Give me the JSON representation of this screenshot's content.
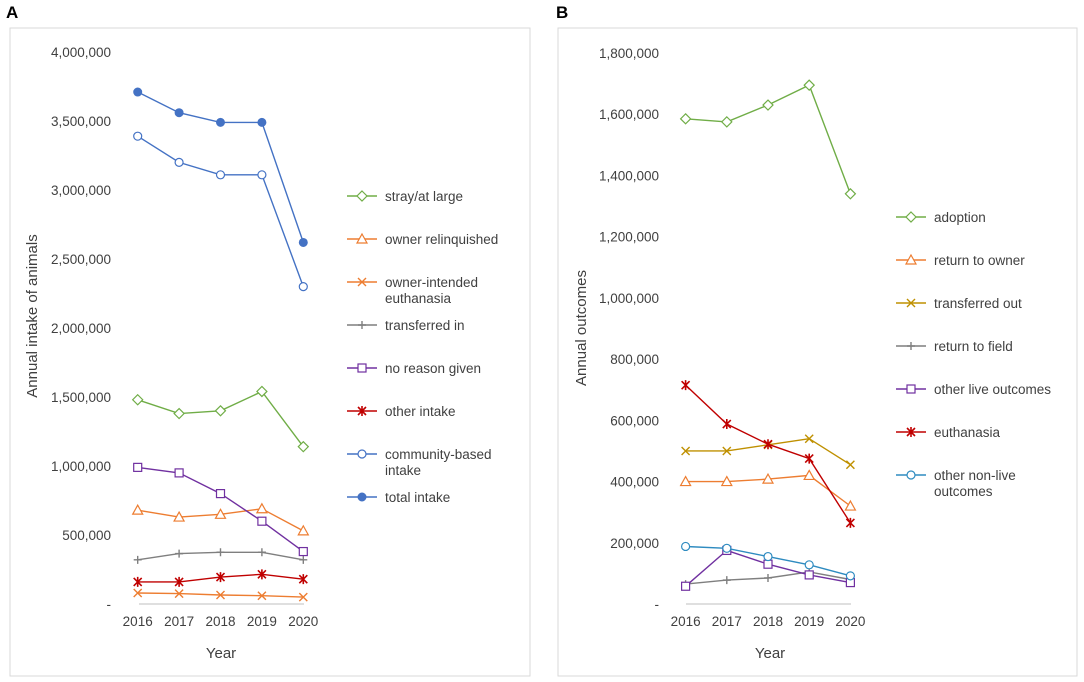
{
  "chart_data": [
    {
      "panel": "A",
      "type": "line",
      "xlabel": "Year",
      "ylabel": "Annual intake of animals",
      "ylim": [
        0,
        4000000
      ],
      "yticks": [
        "-",
        "500,000",
        "1,000,000",
        "1,500,000",
        "2,000,000",
        "2,500,000",
        "3,000,000",
        "3,500,000",
        "4,000,000"
      ],
      "categories": [
        "2016",
        "2017",
        "2018",
        "2019",
        "2020"
      ],
      "grid": false,
      "legend_position": "right",
      "series": [
        {
          "name": "stray/at large",
          "color": "#70AD47",
          "marker": "diamond",
          "values": [
            1480000,
            1380000,
            1400000,
            1540000,
            1140000
          ]
        },
        {
          "name": "owner relinquished",
          "color": "#ED7D31",
          "marker": "triangle",
          "values": [
            680000,
            630000,
            650000,
            690000,
            530000
          ]
        },
        {
          "name": "owner-intended euthanasia",
          "color": "#ED7D31",
          "marker": "x",
          "values": [
            80000,
            75000,
            65000,
            60000,
            50000
          ]
        },
        {
          "name": "transferred in",
          "color": "#7F7F7F",
          "marker": "plus",
          "values": [
            320000,
            365000,
            375000,
            375000,
            320000
          ]
        },
        {
          "name": "no reason given",
          "color": "#7030A0",
          "marker": "square",
          "values": [
            990000,
            950000,
            800000,
            600000,
            380000
          ]
        },
        {
          "name": "other intake",
          "color": "#C00000",
          "marker": "star",
          "values": [
            160000,
            160000,
            195000,
            215000,
            180000
          ]
        },
        {
          "name": "community-based intake",
          "color": "#4472C4",
          "marker": "circle-open",
          "values": [
            3390000,
            3200000,
            3110000,
            3110000,
            2300000
          ]
        },
        {
          "name": "total intake",
          "color": "#4472C4",
          "marker": "circle-filled",
          "values": [
            3710000,
            3560000,
            3490000,
            3490000,
            2620000
          ]
        }
      ]
    },
    {
      "panel": "B",
      "type": "line",
      "xlabel": "Year",
      "ylabel": "Annual outcomes",
      "ylim": [
        0,
        1800000
      ],
      "yticks": [
        "-",
        "200,000",
        "400,000",
        "600,000",
        "800,000",
        "1,000,000",
        "1,200,000",
        "1,400,000",
        "1,600,000",
        "1,800,000"
      ],
      "categories": [
        "2016",
        "2017",
        "2018",
        "2019",
        "2020"
      ],
      "grid": false,
      "legend_position": "right",
      "series": [
        {
          "name": "adoption",
          "color": "#70AD47",
          "marker": "diamond",
          "values": [
            1585000,
            1575000,
            1630000,
            1695000,
            1340000
          ]
        },
        {
          "name": "return to owner",
          "color": "#ED7D31",
          "marker": "triangle",
          "values": [
            400000,
            400000,
            408000,
            420000,
            320000
          ]
        },
        {
          "name": "transferred out",
          "color": "#BF9000",
          "marker": "x",
          "values": [
            500000,
            500000,
            520000,
            540000,
            455000
          ]
        },
        {
          "name": "return to field",
          "color": "#7F7F7F",
          "marker": "plus",
          "values": [
            65000,
            78000,
            85000,
            105000,
            80000
          ]
        },
        {
          "name": "other live outcomes",
          "color": "#7030A0",
          "marker": "square",
          "values": [
            58000,
            175000,
            130000,
            95000,
            70000
          ]
        },
        {
          "name": "euthanasia",
          "color": "#C00000",
          "marker": "star",
          "values": [
            715000,
            588000,
            522000,
            475000,
            265000
          ]
        },
        {
          "name": "other non-live outcomes",
          "color": "#2E8BC0",
          "marker": "circle-open",
          "values": [
            188000,
            182000,
            155000,
            128000,
            92000
          ]
        }
      ]
    }
  ]
}
